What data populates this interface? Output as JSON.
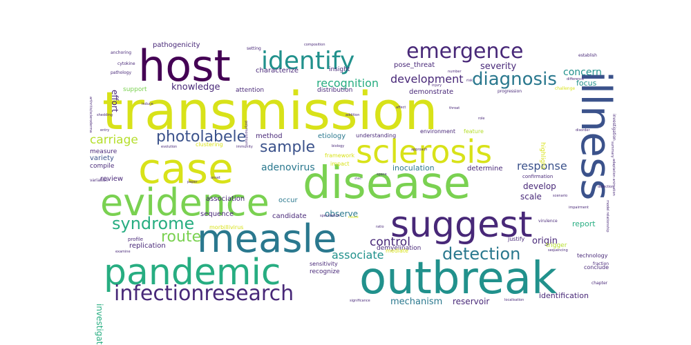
{
  "colors": {
    "yellow": "#d8e219",
    "green": "#7ad151",
    "teal": "#21918c",
    "tealblue": "#2a788e",
    "blue": "#3b528b",
    "purple": "#440154",
    "violet": "#482878",
    "seagreen": "#27ad81",
    "lightgreen": "#b5de2b",
    "gray_teal": "#1f9e89"
  },
  "words": [
    {
      "text": "transmission",
      "color": "yellow"
    },
    {
      "text": "outbreak",
      "color": "teal"
    },
    {
      "text": "disease",
      "color": "green"
    },
    {
      "text": "pandemic",
      "color": "seagreen"
    },
    {
      "text": "host",
      "color": "purple"
    },
    {
      "text": "measle",
      "color": "tealblue"
    },
    {
      "text": "illness",
      "color": "blue"
    },
    {
      "text": "case",
      "color": "yellow"
    },
    {
      "text": "evidence",
      "color": "green"
    },
    {
      "text": "suggest",
      "color": "violet"
    },
    {
      "text": "sclerosis",
      "color": "yellow"
    },
    {
      "text": "identify",
      "color": "teal"
    },
    {
      "text": "emergence",
      "color": "violet"
    },
    {
      "text": "infectionresearch",
      "color": "violet"
    },
    {
      "text": "detection",
      "color": "tealblue"
    },
    {
      "text": "syndrome",
      "color": "seagreen"
    },
    {
      "text": "route",
      "color": "green"
    },
    {
      "text": "diagnosis",
      "color": "tealblue"
    },
    {
      "text": "photolabele",
      "color": "blue"
    },
    {
      "text": "sample",
      "color": "blue"
    },
    {
      "text": "carriage",
      "color": "lightgreen"
    },
    {
      "text": "control",
      "color": "violet"
    },
    {
      "text": "response",
      "color": "blue"
    },
    {
      "text": "associate",
      "color": "teal"
    },
    {
      "text": "development",
      "color": "violet"
    },
    {
      "text": "recognition",
      "color": "seagreen"
    },
    {
      "text": "adenovirus",
      "color": "tealblue"
    },
    {
      "text": "mechanism",
      "color": "tealblue"
    },
    {
      "text": "concern",
      "color": "teal"
    },
    {
      "text": "severity",
      "color": "violet"
    },
    {
      "text": "knowledge",
      "color": "violet"
    },
    {
      "text": "observe",
      "color": "tealblue"
    },
    {
      "text": "origin",
      "color": "violet"
    },
    {
      "text": "effort",
      "color": "violet"
    },
    {
      "text": "investigate",
      "color": "seagreen"
    },
    {
      "text": "reservoir",
      "color": "violet"
    },
    {
      "text": "identification",
      "color": "violet"
    },
    {
      "text": "develop",
      "color": "violet"
    },
    {
      "text": "scale",
      "color": "violet"
    },
    {
      "text": "report",
      "color": "seagreen"
    },
    {
      "text": "focus",
      "color": "teal"
    },
    {
      "text": "inoculation",
      "color": "tealblue"
    },
    {
      "text": "determine",
      "color": "violet"
    },
    {
      "text": "candidate",
      "color": "violet"
    },
    {
      "text": "sequence",
      "color": "violet"
    },
    {
      "text": "association",
      "color": "violet"
    },
    {
      "text": "occur",
      "color": "tealblue"
    },
    {
      "text": "method",
      "color": "violet"
    },
    {
      "text": "etiology",
      "color": "tealblue"
    },
    {
      "text": "understanding",
      "color": "violet"
    },
    {
      "text": "characterize",
      "color": "violet"
    },
    {
      "text": "insight",
      "color": "violet"
    },
    {
      "text": "pose_threat",
      "color": "violet"
    },
    {
      "text": "pathogenicity",
      "color": "violet"
    },
    {
      "text": "demonstrate",
      "color": "violet"
    },
    {
      "text": "distribution",
      "color": "violet"
    },
    {
      "text": "attention",
      "color": "violet"
    },
    {
      "text": "support",
      "color": "green"
    },
    {
      "text": "variety",
      "color": "blue"
    },
    {
      "text": "compile",
      "color": "violet"
    },
    {
      "text": "measure",
      "color": "violet"
    },
    {
      "text": "review",
      "color": "violet"
    },
    {
      "text": "replication",
      "color": "violet"
    },
    {
      "text": "recognize",
      "color": "violet"
    },
    {
      "text": "sensitivity",
      "color": "violet"
    },
    {
      "text": "demyelination",
      "color": "violet"
    },
    {
      "text": "morbillivirus",
      "color": "yellow"
    },
    {
      "text": "highlight",
      "color": "yellow"
    },
    {
      "text": "environment",
      "color": "violet"
    },
    {
      "text": "feature",
      "color": "lightgreen"
    },
    {
      "text": "progression",
      "color": "violet"
    },
    {
      "text": "challenge",
      "color": "yellow"
    },
    {
      "text": "technology",
      "color": "violet"
    },
    {
      "text": "conclude",
      "color": "violet"
    },
    {
      "text": "confirmation",
      "color": "violet"
    },
    {
      "text": "trigger",
      "color": "lightgreen"
    },
    {
      "text": "justify",
      "color": "violet"
    },
    {
      "text": "establish",
      "color": "violet"
    },
    {
      "text": "framework",
      "color": "yellow"
    },
    {
      "text": "clustering",
      "color": "yellow"
    },
    {
      "text": "impact",
      "color": "yellow"
    },
    {
      "text": "profile",
      "color": "violet"
    },
    {
      "text": "fraction",
      "color": "violet"
    },
    {
      "text": "chapter",
      "color": "violet"
    },
    {
      "text": "anchoring",
      "color": "violet"
    },
    {
      "text": "cytokine",
      "color": "violet"
    },
    {
      "text": "pathology",
      "color": "violet"
    },
    {
      "text": "setting",
      "color": "violet"
    },
    {
      "text": "composition",
      "color": "violet"
    },
    {
      "text": "number",
      "color": "violet"
    },
    {
      "text": "injury",
      "color": "violet"
    },
    {
      "text": "difference",
      "color": "violet"
    },
    {
      "text": "investigation",
      "color": "violet"
    },
    {
      "text": "virulence",
      "color": "violet"
    },
    {
      "text": "scenario",
      "color": "violet"
    },
    {
      "text": "sequencing",
      "color": "violet"
    },
    {
      "text": "impairment",
      "color": "violet"
    },
    {
      "text": "defection",
      "color": "violet"
    },
    {
      "text": "affect",
      "color": "violet"
    },
    {
      "text": "throat",
      "color": "violet"
    },
    {
      "text": "role",
      "color": "violet"
    },
    {
      "text": "shed",
      "color": "violet"
    },
    {
      "text": "space",
      "color": "violet"
    },
    {
      "text": "speculation",
      "color": "violet"
    },
    {
      "text": "significance",
      "color": "violet"
    },
    {
      "text": "localisation",
      "color": "violet"
    },
    {
      "text": "mediate",
      "color": "yellow"
    },
    {
      "text": "approach",
      "color": "violet"
    },
    {
      "text": "biology",
      "color": "violet"
    },
    {
      "text": "immunity",
      "color": "violet"
    },
    {
      "text": "evolution",
      "color": "violet"
    },
    {
      "text": "onset",
      "color": "violet"
    },
    {
      "text": "paper",
      "color": "violet"
    },
    {
      "text": "cause",
      "color": "yellow"
    },
    {
      "text": "variation",
      "color": "violet"
    },
    {
      "text": "examine",
      "color": "violet"
    },
    {
      "text": "entry",
      "color": "violet"
    },
    {
      "text": "shedding",
      "color": "violet"
    },
    {
      "text": "induce",
      "color": "violet"
    },
    {
      "text": "polymorphism",
      "color": "violet"
    },
    {
      "text": "addition",
      "color": "violet"
    },
    {
      "text": "ratio",
      "color": "violet"
    },
    {
      "text": "risk",
      "color": "violet"
    },
    {
      "text": "model relationship",
      "color": "violet"
    },
    {
      "text": "adaptation animation",
      "color": "violet"
    },
    {
      "text": "arthritis/scleroderma",
      "color": "violet"
    },
    {
      "text": "disorder",
      "color": "violet"
    },
    {
      "text": "summary",
      "color": "violet"
    }
  ]
}
